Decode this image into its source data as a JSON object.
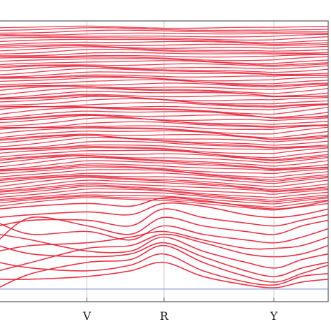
{
  "chart_data": {
    "type": "line",
    "title": "",
    "xlabel": "",
    "ylabel": "",
    "grid": false,
    "legend": "none",
    "colors": {
      "band": "#e8283c",
      "fermi_level": "#b8c4ee",
      "axis": "#555555",
      "high_symmetry_line": "#9a9a9a",
      "tick_label": "#222222"
    },
    "x_ticks": [
      "V",
      "R",
      "Y"
    ],
    "x_tick_positions": [
      0.268,
      0.502,
      0.835
    ],
    "xlim": [
      0,
      1
    ],
    "ylim": [
      0,
      1
    ],
    "fermi_level": 0.045,
    "dense_band_region": {
      "count": 80,
      "x_nodes": [
        0,
        0.268,
        0.502,
        0.835,
        1
      ],
      "bottom_levels": [
        0.34,
        0.37,
        0.36,
        0.33,
        0.35
      ],
      "top_levels": [
        0.975,
        0.98,
        0.978,
        0.976,
        0.98
      ]
    },
    "series": [
      {
        "x": [
          0,
          0.1,
          0.27,
          0.4,
          0.5,
          0.62,
          0.75,
          0.84,
          0.92,
          1
        ],
        "y": [
          0.33,
          0.34,
          0.35,
          0.34,
          0.37,
          0.36,
          0.34,
          0.33,
          0.34,
          0.36
        ]
      },
      {
        "x": [
          0,
          0.1,
          0.27,
          0.4,
          0.5,
          0.62,
          0.75,
          0.84,
          0.92,
          1
        ],
        "y": [
          0.3,
          0.31,
          0.32,
          0.31,
          0.35,
          0.34,
          0.31,
          0.3,
          0.31,
          0.33
        ]
      },
      {
        "x": [
          0,
          0.1,
          0.27,
          0.4,
          0.5,
          0.62,
          0.75,
          0.84,
          0.92,
          1
        ],
        "y": [
          0.27,
          0.29,
          0.29,
          0.27,
          0.33,
          0.3,
          0.28,
          0.27,
          0.29,
          0.31
        ]
      },
      {
        "x": [
          0,
          0.1,
          0.27,
          0.4,
          0.5,
          0.62,
          0.75,
          0.84,
          0.92,
          1
        ],
        "y": [
          0.22,
          0.3,
          0.27,
          0.24,
          0.3,
          0.27,
          0.25,
          0.24,
          0.27,
          0.29
        ]
      },
      {
        "x": [
          0,
          0.1,
          0.27,
          0.4,
          0.5,
          0.62,
          0.75,
          0.84,
          0.92,
          1
        ],
        "y": [
          0.28,
          0.24,
          0.25,
          0.22,
          0.27,
          0.24,
          0.22,
          0.21,
          0.23,
          0.26
        ]
      },
      {
        "x": [
          0,
          0.1,
          0.27,
          0.4,
          0.5,
          0.62,
          0.75,
          0.84,
          0.92,
          1
        ],
        "y": [
          0.18,
          0.2,
          0.21,
          0.23,
          0.25,
          0.22,
          0.19,
          0.19,
          0.2,
          0.23
        ]
      },
      {
        "x": [
          0,
          0.1,
          0.27,
          0.4,
          0.5,
          0.62,
          0.75,
          0.84,
          0.92,
          1
        ],
        "y": [
          0.11,
          0.14,
          0.19,
          0.2,
          0.24,
          0.21,
          0.17,
          0.16,
          0.17,
          0.2
        ]
      },
      {
        "x": [
          0,
          0.1,
          0.27,
          0.4,
          0.5,
          0.62,
          0.75,
          0.84,
          0.92,
          1
        ],
        "y": [
          0.24,
          0.22,
          0.18,
          0.18,
          0.23,
          0.18,
          0.14,
          0.12,
          0.15,
          0.17
        ]
      },
      {
        "x": [
          0,
          0.1,
          0.27,
          0.4,
          0.5,
          0.62,
          0.75,
          0.84,
          0.92,
          1
        ],
        "y": [
          0.2,
          0.17,
          0.16,
          0.17,
          0.21,
          0.16,
          0.11,
          0.09,
          0.12,
          0.14
        ]
      },
      {
        "x": [
          0,
          0.1,
          0.27,
          0.4,
          0.5,
          0.62,
          0.75,
          0.84,
          0.92,
          1
        ],
        "y": [
          0.05,
          0.1,
          0.14,
          0.15,
          0.2,
          0.14,
          0.09,
          0.07,
          0.1,
          0.13
        ]
      },
      {
        "x": [
          0,
          0.1,
          0.27,
          0.4,
          0.5,
          0.62,
          0.75,
          0.84,
          0.92,
          1
        ],
        "y": [
          0.14,
          0.12,
          0.11,
          0.13,
          0.17,
          0.11,
          0.07,
          0.06,
          0.09,
          0.1
        ]
      },
      {
        "x": [
          0,
          0.1,
          0.27,
          0.4,
          0.5,
          0.62,
          0.75,
          0.84,
          0.92,
          1
        ],
        "y": [
          0.08,
          0.08,
          0.09,
          0.11,
          0.14,
          0.09,
          0.06,
          0.05,
          0.07,
          0.08
        ]
      }
    ]
  }
}
